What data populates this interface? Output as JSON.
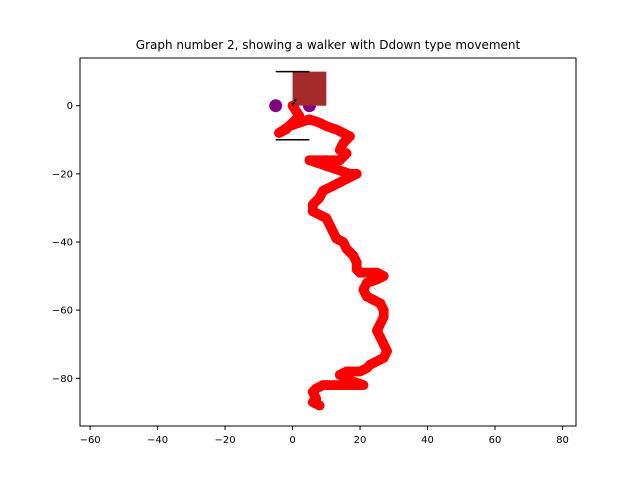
{
  "chart_data": {
    "type": "scatter",
    "title": "Graph number 2, showing a walker with Ddown type movement",
    "xlabel": "",
    "ylabel": "",
    "xlim": [
      -63,
      84
    ],
    "ylim": [
      -94,
      14
    ],
    "xticks": [
      -60,
      -40,
      -20,
      0,
      20,
      40,
      60,
      80
    ],
    "yticks": [
      0,
      -20,
      -40,
      -60,
      -80
    ],
    "xtick_labels": [
      "−60",
      "−40",
      "−20",
      "0",
      "20",
      "40",
      "60",
      "80"
    ],
    "ytick_labels": [
      "0",
      "−20",
      "−40",
      "−60",
      "−80"
    ],
    "grid": false,
    "legend": "none",
    "colors": {
      "walker_path": "#ff0000",
      "markers": "#800080",
      "square": "#a52a2a",
      "lines": "#000000"
    },
    "series": [
      {
        "type": "path",
        "color": "#ff0000",
        "points": [
          [
            0,
            0
          ],
          [
            2,
            -3
          ],
          [
            0,
            -5
          ],
          [
            -2,
            -7
          ],
          [
            -4,
            -8
          ],
          [
            -1,
            -6
          ],
          [
            2,
            -5
          ],
          [
            5,
            -4
          ],
          [
            8,
            -5
          ],
          [
            10,
            -6
          ],
          [
            13,
            -7
          ],
          [
            15,
            -8
          ],
          [
            17,
            -9
          ],
          [
            15,
            -11
          ],
          [
            14,
            -13
          ],
          [
            16,
            -14
          ],
          [
            14,
            -16
          ],
          [
            11,
            -16
          ],
          [
            7,
            -16
          ],
          [
            5,
            -16
          ],
          [
            8,
            -17
          ],
          [
            11,
            -18
          ],
          [
            14,
            -19
          ],
          [
            17,
            -20
          ],
          [
            19,
            -20
          ],
          [
            17,
            -21
          ],
          [
            15,
            -22
          ],
          [
            13,
            -23
          ],
          [
            11,
            -24
          ],
          [
            9,
            -25
          ],
          [
            8,
            -27
          ],
          [
            6,
            -29
          ],
          [
            6,
            -31
          ],
          [
            8,
            -32
          ],
          [
            10,
            -33
          ],
          [
            11,
            -35
          ],
          [
            12,
            -37
          ],
          [
            13,
            -39
          ],
          [
            15,
            -40
          ],
          [
            16,
            -42
          ],
          [
            18,
            -44
          ],
          [
            19,
            -46
          ],
          [
            19,
            -48
          ],
          [
            20,
            -49
          ],
          [
            22,
            -49
          ],
          [
            25,
            -49
          ],
          [
            27,
            -50
          ],
          [
            25,
            -51
          ],
          [
            22,
            -52
          ],
          [
            21,
            -54
          ],
          [
            22,
            -56
          ],
          [
            24,
            -57
          ],
          [
            26,
            -58
          ],
          [
            27,
            -60
          ],
          [
            27,
            -62
          ],
          [
            26,
            -64
          ],
          [
            25,
            -66
          ],
          [
            26,
            -68
          ],
          [
            27,
            -70
          ],
          [
            28,
            -72
          ],
          [
            27,
            -74
          ],
          [
            25,
            -75
          ],
          [
            23,
            -76
          ],
          [
            22,
            -77
          ],
          [
            20,
            -78
          ],
          [
            18,
            -78
          ],
          [
            16,
            -78
          ],
          [
            14,
            -79
          ],
          [
            16,
            -80
          ],
          [
            18,
            -81
          ],
          [
            21,
            -82
          ],
          [
            19,
            -82
          ],
          [
            16,
            -82
          ],
          [
            13,
            -82
          ],
          [
            11,
            -82
          ],
          [
            9,
            -82
          ],
          [
            7,
            -83
          ],
          [
            6,
            -84
          ],
          [
            7,
            -86
          ],
          [
            6,
            -87
          ],
          [
            8,
            -88
          ]
        ]
      },
      {
        "type": "marker",
        "color": "#800080",
        "points": [
          [
            -5,
            0
          ],
          [
            5,
            0
          ]
        ]
      },
      {
        "type": "square",
        "color": "#a52a2a",
        "x": [
          0,
          10
        ],
        "y": [
          0,
          10
        ]
      },
      {
        "type": "segments",
        "color": "#000000",
        "lines": [
          [
            [
              -5,
              10
            ],
            [
              5,
              10
            ]
          ],
          [
            [
              -5,
              -10
            ],
            [
              5,
              -10
            ]
          ],
          [
            [
              0,
              0
            ],
            [
              1,
              2
            ]
          ]
        ]
      }
    ]
  }
}
